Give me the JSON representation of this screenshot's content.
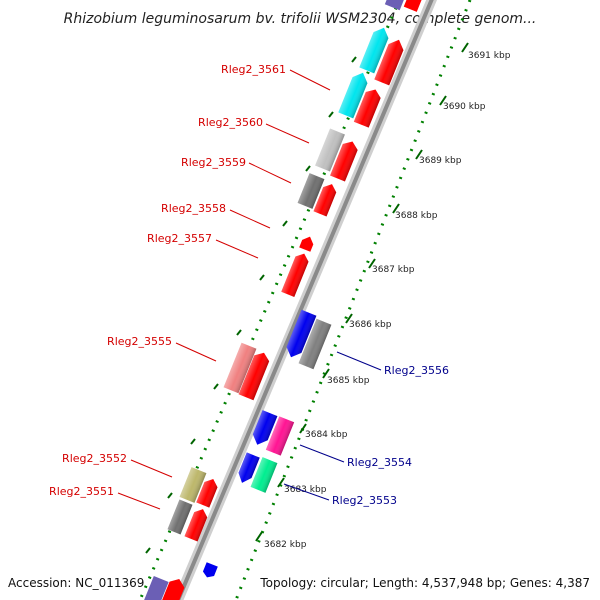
{
  "title": "Rhizobium leguminosarum bv. trifolii WSM2304, complete genom...",
  "footer": {
    "accession": "Accession: NC_011369",
    "summary": "Topology: circular; Length: 4,537,948 bp; Genes: 4,387"
  },
  "colors": {
    "forward": "#ff0000",
    "reverse": "#0000ff",
    "backbone": "#808080",
    "ticks": "#008000"
  },
  "ticks": [
    {
      "label": "3691 kbp"
    },
    {
      "label": "3690 kbp"
    },
    {
      "label": "3689 kbp"
    },
    {
      "label": "3688 kbp"
    },
    {
      "label": "3687 kbp"
    },
    {
      "label": "3686 kbp"
    },
    {
      "label": "3685 kbp"
    },
    {
      "label": "3684 kbp"
    },
    {
      "label": "3683 kbp"
    },
    {
      "label": "3682 kbp"
    }
  ],
  "gene_labels": {
    "g3561": "Rleg2_3561",
    "g3560": "Rleg2_3560",
    "g3559": "Rleg2_3559",
    "g3558": "Rleg2_3558",
    "g3557": "Rleg2_3557",
    "g3555": "Rleg2_3555",
    "g3552": "Rleg2_3552",
    "g3551": "Rleg2_3551",
    "g3556": "Rleg2_3556",
    "g3554": "Rleg2_3554",
    "g3553": "Rleg2_3553"
  }
}
